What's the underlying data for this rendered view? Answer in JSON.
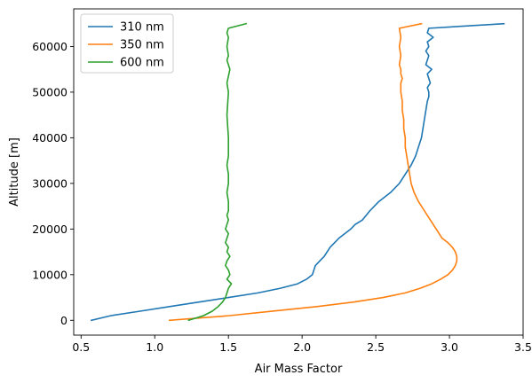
{
  "chart_data": {
    "type": "line",
    "xlabel": "Air Mass Factor",
    "ylabel": "Altitude [m]",
    "xlim": [
      0.45,
      3.5
    ],
    "ylim": [
      -3250,
      68250
    ],
    "xticks": [
      0.5,
      1.0,
      1.5,
      2.0,
      2.5,
      3.0,
      3.5
    ],
    "xtick_labels": [
      "0.5",
      "1.0",
      "1.5",
      "2.0",
      "2.5",
      "3.0",
      "3.5"
    ],
    "yticks": [
      0,
      10000,
      20000,
      30000,
      40000,
      50000,
      60000
    ],
    "ytick_labels": [
      "0",
      "10000",
      "20000",
      "30000",
      "40000",
      "50000",
      "60000"
    ],
    "grid": false,
    "legend_position": "top-left",
    "series": [
      {
        "name": "310 nm",
        "color": "#1f77b4",
        "x": [
          0.57,
          0.7,
          0.9,
          1.1,
          1.3,
          1.5,
          1.7,
          1.85,
          1.97,
          2.03,
          2.07,
          2.08,
          2.09,
          2.12,
          2.15,
          2.17,
          2.19,
          2.22,
          2.25,
          2.29,
          2.33,
          2.36,
          2.41,
          2.46,
          2.52,
          2.6,
          2.66,
          2.7,
          2.74,
          2.77,
          2.79,
          2.81,
          2.82,
          2.83,
          2.84,
          2.85,
          2.86,
          2.86,
          2.85,
          2.87,
          2.86,
          2.85,
          2.88,
          2.84,
          2.85,
          2.86,
          2.84,
          2.86,
          2.85,
          2.89,
          2.85,
          2.86,
          3.37
        ],
        "y": [
          0,
          1000,
          2000,
          3000,
          4000,
          5000,
          6000,
          7000,
          8000,
          9000,
          10000,
          11000,
          12000,
          13000,
          14000,
          15000,
          16000,
          17000,
          18000,
          19000,
          20000,
          21000,
          22000,
          24000,
          26000,
          28000,
          30000,
          32000,
          34000,
          36000,
          38000,
          40000,
          42000,
          44000,
          46000,
          48000,
          49000,
          50000,
          51000,
          52000,
          53000,
          54000,
          55000,
          56000,
          57000,
          58000,
          59000,
          60000,
          61000,
          62000,
          63000,
          64000,
          65000
        ]
      },
      {
        "name": "350 nm",
        "color": "#ff7f0e",
        "x": [
          1.1,
          1.5,
          1.8,
          2.1,
          2.35,
          2.55,
          2.7,
          2.8,
          2.88,
          2.94,
          2.99,
          3.02,
          3.04,
          3.05,
          3.05,
          3.04,
          3.02,
          2.99,
          2.95,
          2.91,
          2.87,
          2.83,
          2.79,
          2.76,
          2.74,
          2.73,
          2.72,
          2.71,
          2.7,
          2.7,
          2.69,
          2.69,
          2.68,
          2.68,
          2.67,
          2.67,
          2.68,
          2.67,
          2.67,
          2.66,
          2.67,
          2.66,
          2.67,
          2.66,
          2.81
        ],
        "y": [
          0,
          1000,
          2000,
          3000,
          4000,
          5000,
          6000,
          7000,
          8000,
          9000,
          10000,
          11000,
          12000,
          13000,
          14000,
          15000,
          16000,
          17000,
          18000,
          20000,
          22000,
          24000,
          26000,
          28000,
          30000,
          32000,
          34000,
          36000,
          38000,
          40000,
          42000,
          44000,
          46000,
          48000,
          50000,
          52000,
          53000,
          54000,
          55000,
          56000,
          58000,
          60000,
          62000,
          64000,
          65000
        ]
      },
      {
        "name": "600 nm",
        "color": "#2ca02c",
        "x": [
          1.23,
          1.33,
          1.39,
          1.43,
          1.46,
          1.48,
          1.49,
          1.5,
          1.52,
          1.49,
          1.51,
          1.5,
          1.48,
          1.49,
          1.51,
          1.49,
          1.5,
          1.48,
          1.49,
          1.5,
          1.48,
          1.49,
          1.5,
          1.49,
          1.5,
          1.5,
          1.49,
          1.5,
          1.5,
          1.49,
          1.5,
          1.5,
          1.5,
          1.49,
          1.5,
          1.49,
          1.51,
          1.49,
          1.5,
          1.49,
          1.5,
          1.49,
          1.5,
          1.62
        ],
        "y": [
          0,
          1000,
          2000,
          3000,
          4000,
          5000,
          6000,
          7000,
          8000,
          9000,
          10000,
          11000,
          12000,
          13000,
          14000,
          15000,
          16000,
          17000,
          18000,
          19000,
          20000,
          21000,
          22000,
          23000,
          24000,
          26000,
          28000,
          30000,
          32000,
          34000,
          36000,
          38000,
          40000,
          45000,
          50000,
          52000,
          55000,
          57000,
          58000,
          60000,
          62000,
          63000,
          64000,
          65000
        ]
      }
    ]
  }
}
